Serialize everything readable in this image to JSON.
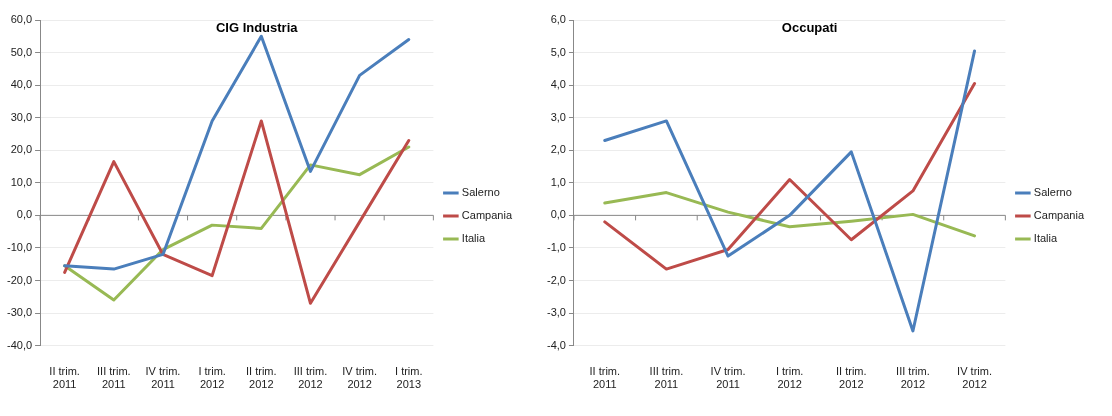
{
  "chart_data": [
    {
      "type": "line",
      "title": "CIG Industria",
      "categories": [
        "II trim. 2011",
        "III trim. 2011",
        "IV trim. 2011",
        "I trim. 2012",
        "II trim. 2012",
        "III trim. 2012",
        "IV trim. 2012",
        "I trim. 2013"
      ],
      "series": [
        {
          "name": "Salerno",
          "color": "#4a7ebb",
          "values": [
            -15.5,
            -16.5,
            -12,
            29,
            55,
            13.5,
            43,
            54
          ]
        },
        {
          "name": "Campania",
          "color": "#be4b48",
          "values": [
            -17.5,
            16.5,
            -12,
            -18.5,
            29,
            -27,
            -2,
            23
          ]
        },
        {
          "name": "Italia",
          "color": "#98b954",
          "values": [
            -15.5,
            -26,
            -10.5,
            -3,
            -4,
            15.5,
            12.5,
            21
          ]
        }
      ],
      "ylim": [
        -40,
        60
      ],
      "yticks": [
        {
          "value": -40,
          "label": "-40,0"
        },
        {
          "value": -30,
          "label": "-30,0"
        },
        {
          "value": -20,
          "label": "-20,0"
        },
        {
          "value": -10,
          "label": "-10,0"
        },
        {
          "value": 0,
          "label": "0,0"
        },
        {
          "value": 10,
          "label": "10,0"
        },
        {
          "value": 20,
          "label": "20,0"
        },
        {
          "value": 30,
          "label": "30,0"
        },
        {
          "value": 40,
          "label": "40,0"
        },
        {
          "value": 50,
          "label": "50,0"
        },
        {
          "value": 60,
          "label": "60,0"
        }
      ],
      "grid": "y",
      "legend": "right",
      "marker": "none",
      "line_style": "solid"
    },
    {
      "type": "line",
      "title": "Occupati",
      "categories": [
        "II trim. 2011",
        "III trim. 2011",
        "IV trim. 2011",
        "I trim. 2012",
        "II trim. 2012",
        "III trim. 2012",
        "IV trim. 2012"
      ],
      "series": [
        {
          "name": "Salerno",
          "color": "#4a7ebb",
          "values": [
            2.3,
            2.9,
            -1.25,
            0,
            1.95,
            -3.55,
            5.05
          ]
        },
        {
          "name": "Campania",
          "color": "#be4b48",
          "values": [
            -0.2,
            -1.65,
            -1.05,
            1.1,
            -0.75,
            0.75,
            4.05
          ]
        },
        {
          "name": "Italia",
          "color": "#98b954",
          "values": [
            0.38,
            0.7,
            0.1,
            -0.35,
            -0.18,
            0.03,
            -0.63
          ]
        }
      ],
      "ylim": [
        -4,
        6
      ],
      "yticks": [
        {
          "value": -4,
          "label": "-4,0"
        },
        {
          "value": -3,
          "label": "-3,0"
        },
        {
          "value": -2,
          "label": "-2,0"
        },
        {
          "value": -1,
          "label": "-1,0"
        },
        {
          "value": 0,
          "label": "0,0"
        },
        {
          "value": 1,
          "label": "1,0"
        },
        {
          "value": 2,
          "label": "2,0"
        },
        {
          "value": 3,
          "label": "3,0"
        },
        {
          "value": 4,
          "label": "4,0"
        },
        {
          "value": 5,
          "label": "5,0"
        },
        {
          "value": 6,
          "label": "6,0"
        }
      ],
      "grid": "y",
      "legend": "right",
      "marker": "none",
      "line_style": "solid"
    }
  ]
}
